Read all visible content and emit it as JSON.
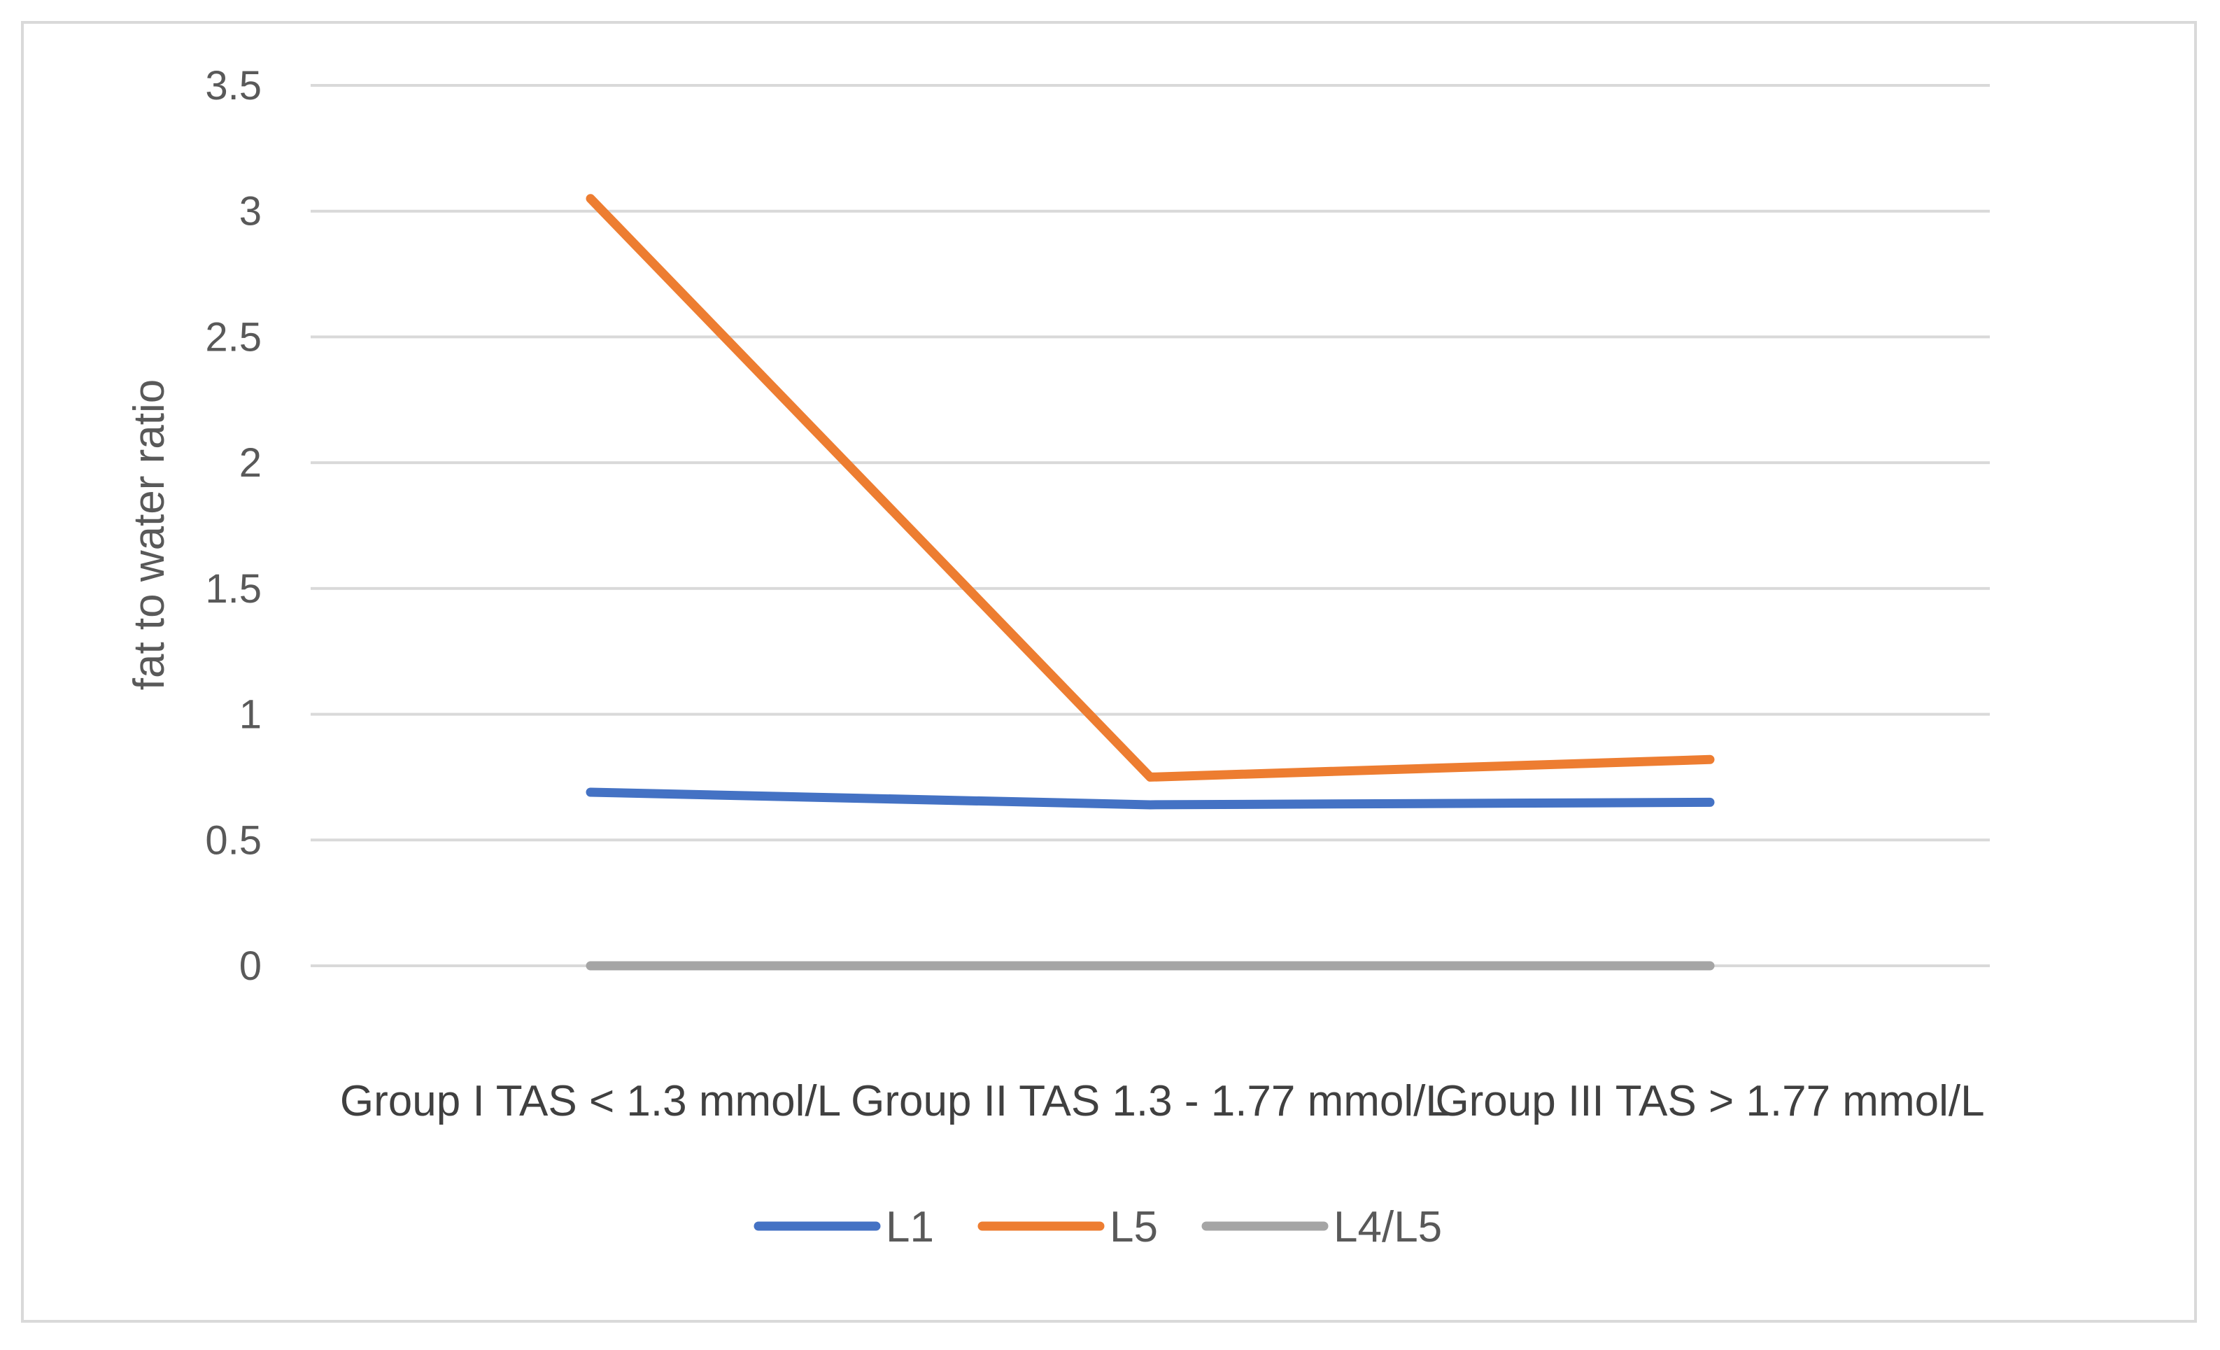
{
  "chart_data": {
    "type": "line",
    "categories": [
      "Group I TAS < 1.3 mmol/L",
      "Group II TAS 1.3 - 1.77 mmol/L",
      "Group III TAS > 1.77 mmol/L"
    ],
    "series": [
      {
        "name": "L1",
        "values": [
          0.69,
          0.64,
          0.65
        ],
        "color": "#4472c4"
      },
      {
        "name": "L5",
        "values": [
          3.05,
          0.75,
          0.82
        ],
        "color": "#ed7d31"
      },
      {
        "name": "L4/L5",
        "values": [
          0.0,
          0.0,
          0.0
        ],
        "color": "#a5a5a5"
      }
    ],
    "ylabel": "fat to water ratio",
    "xlabel": "",
    "title": "",
    "ylim": [
      0,
      3.5
    ],
    "yticks": [
      "0",
      "0.5",
      "1",
      "1.5",
      "2",
      "2.5",
      "3",
      "3.5"
    ],
    "ytick_values": [
      0,
      0.5,
      1,
      1.5,
      2,
      2.5,
      3,
      3.5
    ],
    "grid": true,
    "legend_position": "bottom"
  }
}
